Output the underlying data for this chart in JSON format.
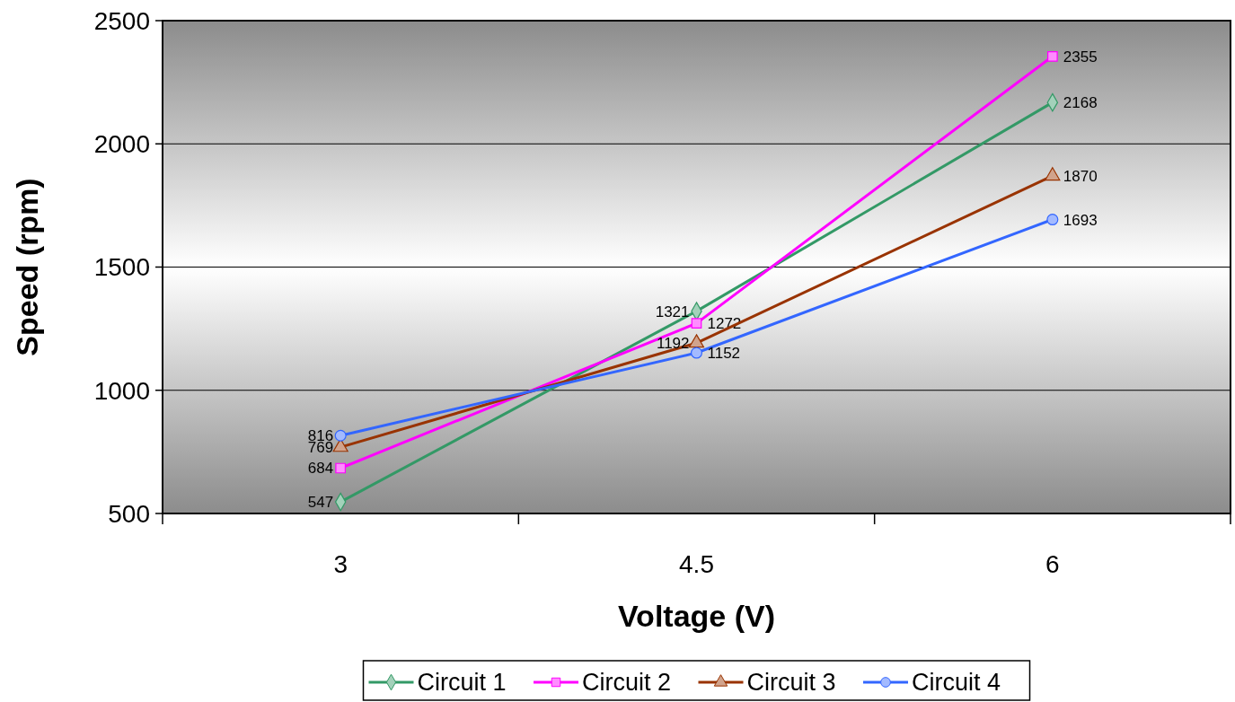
{
  "chart_data": {
    "type": "line",
    "xlabel": "Voltage (V)",
    "ylabel": "Speed (rpm)",
    "categories": [
      "3",
      "4.5",
      "6"
    ],
    "series": [
      {
        "name": "Circuit 1",
        "color": "#339966",
        "marker": "diamond",
        "values": [
          547,
          1321,
          2168
        ]
      },
      {
        "name": "Circuit 2",
        "color": "#ff00ff",
        "marker": "square",
        "values": [
          684,
          1272,
          2355
        ]
      },
      {
        "name": "Circuit 3",
        "color": "#993300",
        "marker": "triangle",
        "values": [
          769,
          1192,
          1870
        ]
      },
      {
        "name": "Circuit 4",
        "color": "#3366ff",
        "marker": "circle",
        "values": [
          816,
          1152,
          1693
        ]
      }
    ],
    "ylim": [
      500,
      2500
    ],
    "yticks": [
      500,
      1000,
      1500,
      2000,
      2500
    ],
    "grid": "y",
    "legend": "bottom",
    "data_labels": true
  }
}
